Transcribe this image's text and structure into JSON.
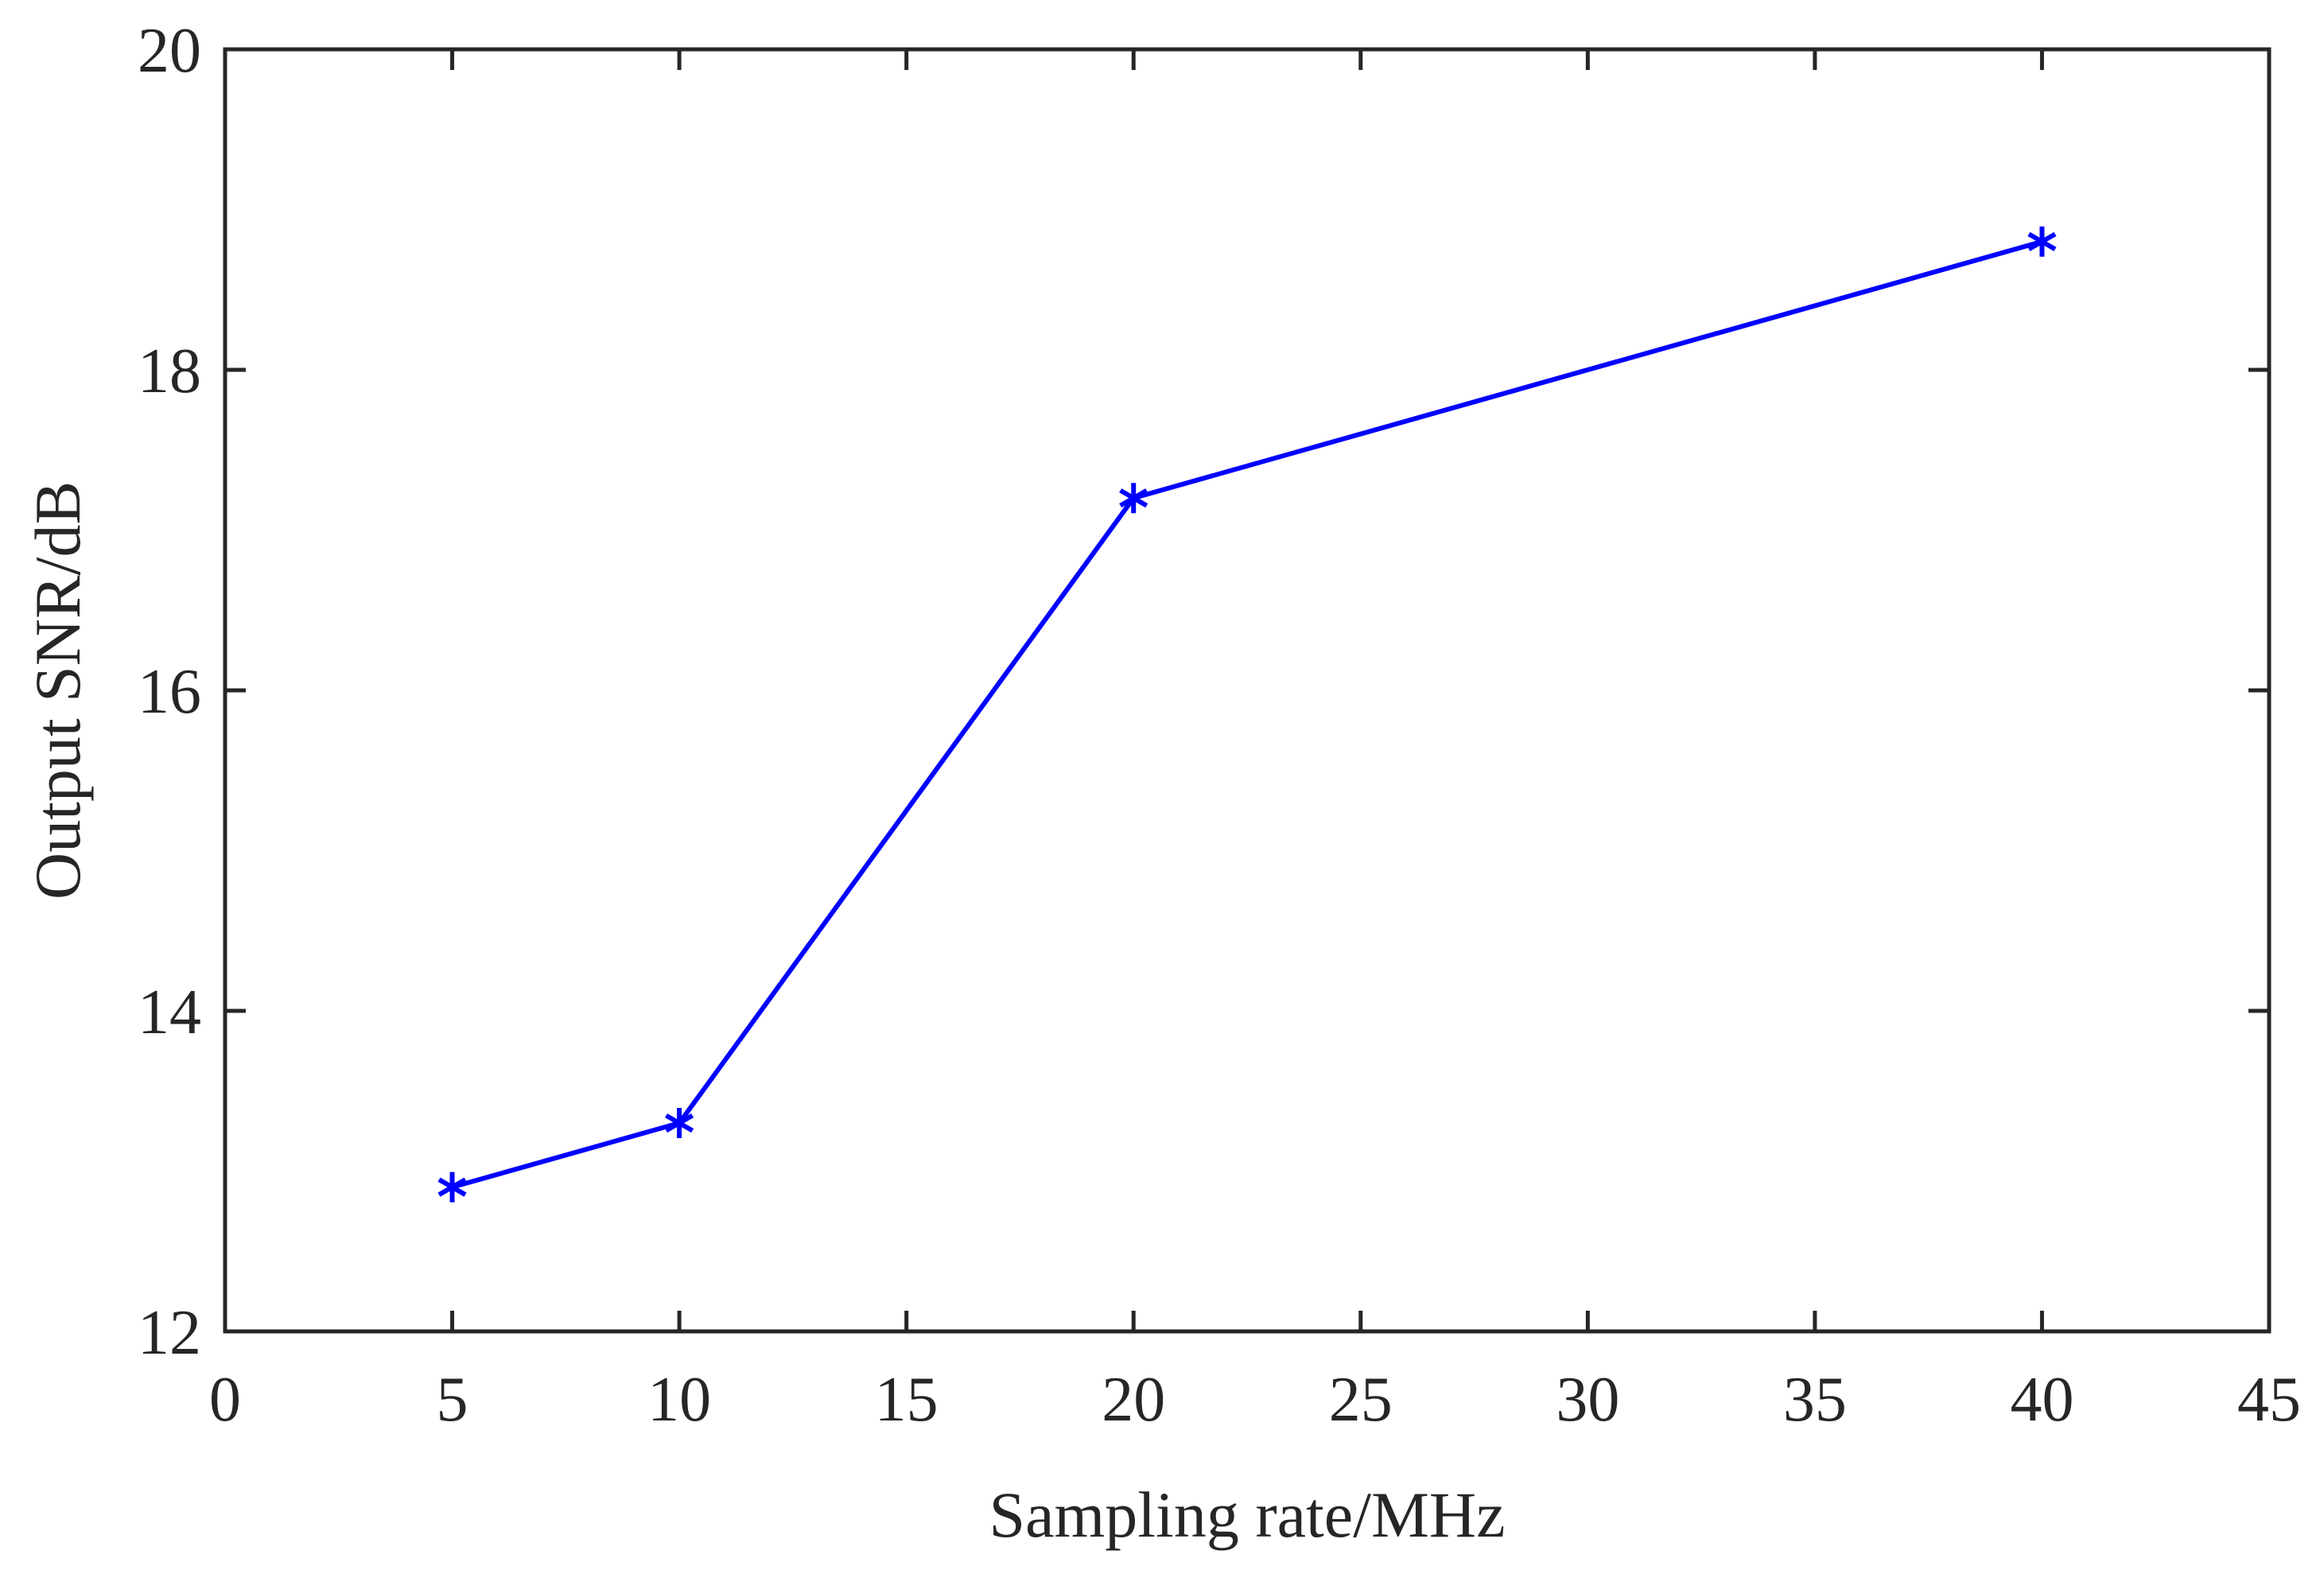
{
  "chart_data": {
    "type": "line",
    "title": "",
    "xlabel": "Sampling rate/MHz",
    "ylabel": "Output SNR/dB",
    "xlim": [
      0,
      45
    ],
    "ylim": [
      12,
      20
    ],
    "xticks": [
      0,
      5,
      10,
      15,
      20,
      25,
      30,
      35,
      40,
      45
    ],
    "yticks": [
      12,
      14,
      16,
      18,
      20
    ],
    "xtick_labels": [
      "0",
      "5",
      "10",
      "15",
      "20",
      "25",
      "30",
      "35",
      "40",
      "45"
    ],
    "ytick_labels": [
      "12",
      "14",
      "16",
      "18",
      "20"
    ],
    "grid": false,
    "legend": null,
    "series": [
      {
        "x": [
          5,
          10,
          20,
          40
        ],
        "y": [
          12.9,
          13.3,
          17.2,
          18.8
        ],
        "color": "#0000ff",
        "marker": "asterisk"
      }
    ]
  }
}
